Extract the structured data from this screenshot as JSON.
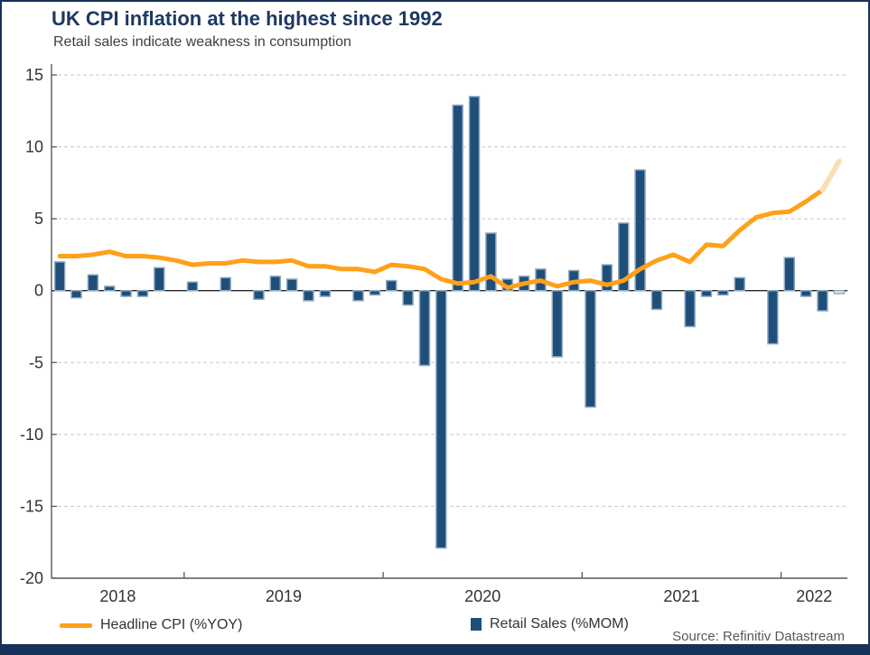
{
  "header": {
    "title": "UK CPI inflation at the highest since 1992",
    "subtitle": "Retail sales indicate weakness in consumption"
  },
  "source": "Source: Refinitiv Datastream",
  "colors": {
    "title": "#1f3864",
    "subtitle": "#3f3f3f",
    "cpi_line": "#ffa019",
    "cpi_line_forecast": "#fbdfb4",
    "bar_fill": "#1f4e79",
    "bar_border": "#8fa9c2",
    "bar_forecast_fill": "#e9eef3",
    "gridline": "#c9c9c9",
    "zero_line": "#262626",
    "axis": "#595959",
    "tick_label": "#333333",
    "frame_bar": "#163258"
  },
  "chart_data": {
    "type": "combo",
    "frequency": "monthly",
    "categories": [
      "May 2018",
      "Jun 2018",
      "Jul 2018",
      "Aug 2018",
      "Sep 2018",
      "Oct 2018",
      "Nov 2018",
      "Dec 2018",
      "Jan 2019",
      "Feb 2019",
      "Mar 2019",
      "Apr 2019",
      "May 2019",
      "Jun 2019",
      "Jul 2019",
      "Aug 2019",
      "Sep 2019",
      "Oct 2019",
      "Nov 2019",
      "Dec 2019",
      "Jan 2020",
      "Feb 2020",
      "Mar 2020",
      "Apr 2020",
      "May 2020",
      "Jun 2020",
      "Jul 2020",
      "Aug 2020",
      "Sep 2020",
      "Oct 2020",
      "Nov 2020",
      "Dec 2020",
      "Jan 2021",
      "Feb 2021",
      "Mar 2021",
      "Apr 2021",
      "May 2021",
      "Jun 2021",
      "Jul 2021",
      "Aug 2021",
      "Sep 2021",
      "Oct 2021",
      "Nov 2021",
      "Dec 2021",
      "Jan 2022",
      "Feb 2022",
      "Mar 2022",
      "Apr 2022"
    ],
    "series": [
      {
        "name": "Headline CPI (%YOY)",
        "type": "line",
        "values": [
          2.4,
          2.4,
          2.5,
          2.7,
          2.4,
          2.4,
          2.3,
          2.1,
          1.8,
          1.9,
          1.9,
          2.1,
          2.0,
          2.0,
          2.1,
          1.7,
          1.7,
          1.5,
          1.5,
          1.3,
          1.8,
          1.7,
          1.5,
          0.8,
          0.5,
          0.6,
          1.0,
          0.2,
          0.5,
          0.7,
          0.3,
          0.6,
          0.7,
          0.4,
          0.7,
          1.5,
          2.1,
          2.5,
          2.0,
          3.2,
          3.1,
          4.2,
          5.1,
          5.4,
          5.5,
          6.2,
          7.0,
          9.0
        ],
        "note": "last segment drawn pale (forecast/flash estimate)"
      },
      {
        "name": "Retail Sales (%MOM)",
        "type": "bar",
        "values": [
          2.0,
          -0.5,
          1.1,
          0.3,
          -0.4,
          -0.4,
          1.6,
          0.0,
          0.6,
          0.0,
          0.9,
          0.0,
          -0.6,
          1.0,
          0.8,
          -0.7,
          -0.4,
          0.0,
          -0.7,
          -0.3,
          0.7,
          -1.0,
          -5.2,
          -17.9,
          12.9,
          13.5,
          4.0,
          0.8,
          1.0,
          1.5,
          -4.6,
          1.4,
          -8.1,
          1.8,
          4.7,
          8.4,
          -1.3,
          0.0,
          -2.5,
          -0.4,
          -0.3,
          0.9,
          0.0,
          -3.7,
          2.3,
          -0.4,
          -1.4,
          -0.2
        ],
        "note": "last bar drawn white with grey border (forecast)"
      }
    ],
    "ylim": [
      -20,
      15
    ],
    "yticks": [
      15,
      10,
      5,
      0,
      -5,
      -10,
      -15,
      -20
    ],
    "xtick_year_labels": [
      "2018",
      "2019",
      "2020",
      "2021",
      "2022"
    ],
    "grid": "horizontal-dashed",
    "legend_position": "bottom"
  }
}
